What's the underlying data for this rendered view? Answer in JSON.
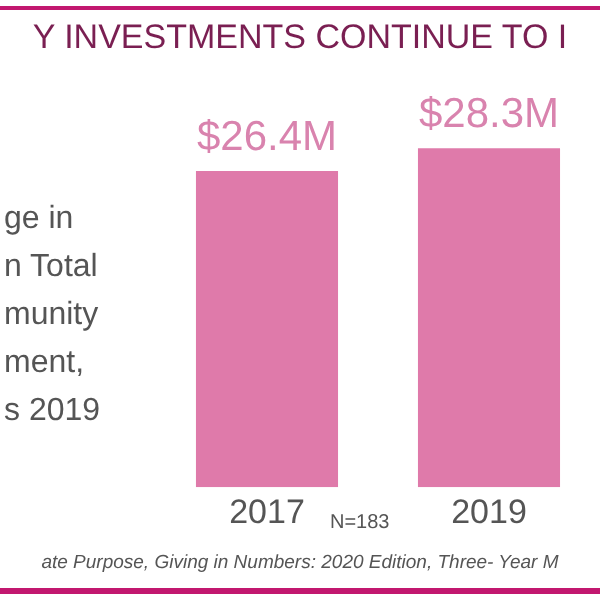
{
  "chart_data": {
    "type": "bar",
    "title": "Y INVESTMENTS CONTINUE TO I",
    "categories": [
      "2017",
      "2019"
    ],
    "series": [
      {
        "color": "#df7aaa",
        "values": [
          26.4,
          28.3
        ],
        "value_labels": [
          "$26.4M",
          "$28.3M"
        ]
      }
    ],
    "grid": false,
    "legend": false,
    "tick_labels": "x",
    "annotations": [
      "ge in\nn Total\nmunity\nment,\ns 2019",
      "N=183",
      "ate Purpose, Giving in Numbers: 2020 Edition, Three- Year M"
    ]
  }
}
